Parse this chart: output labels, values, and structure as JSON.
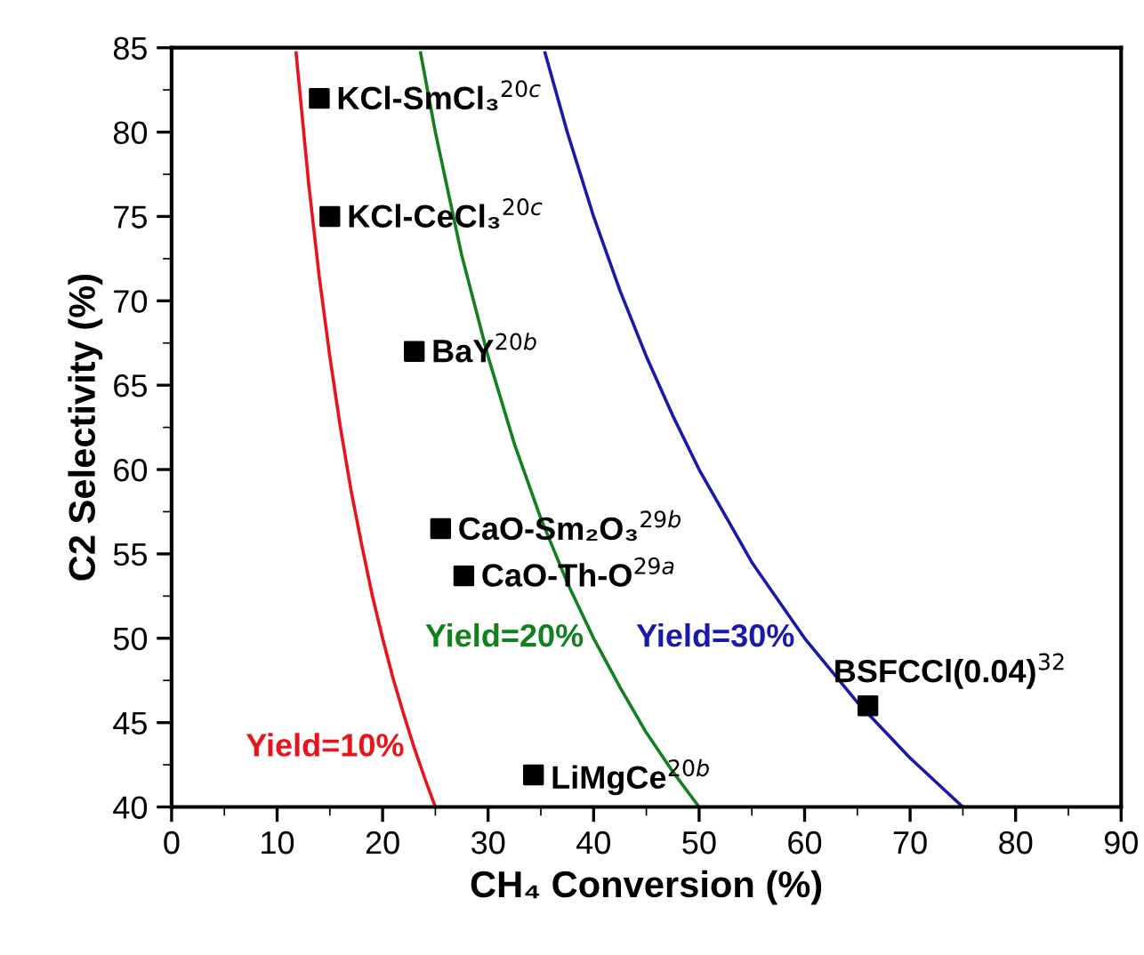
{
  "chart_data": {
    "type": "scatter",
    "xlabel": "CH₄ Conversion (%)",
    "ylabel": "C2 Selectivity (%)",
    "xlim": [
      0,
      90
    ],
    "ylim": [
      40,
      85
    ],
    "xticks": [
      0,
      10,
      20,
      30,
      40,
      50,
      60,
      70,
      80,
      90
    ],
    "yticks": [
      40,
      45,
      50,
      55,
      60,
      65,
      70,
      75,
      80,
      85
    ],
    "grid": false,
    "legend": false,
    "series": [
      {
        "marker": "square",
        "color": "#000000",
        "x": [
          14,
          15,
          23,
          25.5,
          27.7,
          34.3,
          66
        ],
        "values": [
          82,
          75,
          67,
          56.5,
          53.7,
          41.9,
          46
        ]
      },
      {
        "type": "line",
        "name": "Yield=10%",
        "color": "#e8141c",
        "x": [
          11.8,
          13,
          14,
          15,
          16,
          17,
          18,
          19,
          20,
          21,
          22,
          23,
          24,
          25
        ],
        "values": [
          84.7,
          76.9,
          71.4,
          66.7,
          62.5,
          58.8,
          55.6,
          52.6,
          50,
          47.6,
          45.5,
          43.5,
          41.7,
          40
        ]
      },
      {
        "type": "line",
        "name": "Yield=20%",
        "color": "#11801e",
        "x": [
          23.6,
          25,
          27.5,
          30,
          32.5,
          35,
          37.5,
          40,
          42.5,
          45,
          47.5,
          50
        ],
        "values": [
          84.7,
          80,
          72.7,
          66.7,
          61.5,
          57.1,
          53.3,
          50,
          47.1,
          44.4,
          42.1,
          40
        ]
      },
      {
        "type": "line",
        "name": "Yield=30%",
        "color": "#1a1aa8",
        "x": [
          35.4,
          37.5,
          40,
          42.5,
          45,
          47.5,
          50,
          55,
          60,
          65,
          70,
          75
        ],
        "values": [
          84.7,
          80,
          75,
          70.6,
          66.7,
          63.2,
          60,
          54.5,
          50,
          46.2,
          42.9,
          40
        ]
      }
    ],
    "annotations": [
      {
        "text": "KCl-SmCl₃$^{20c}$",
        "x": 14,
        "y": 82
      },
      {
        "text": "KCl-CeCl₃$^{20c}$",
        "x": 15,
        "y": 75
      },
      {
        "text": "BaY$^{20b}$",
        "x": 23,
        "y": 67
      },
      {
        "text": "CaO-Sm₂O₃$^{29b}$",
        "x": 25.5,
        "y": 56.5
      },
      {
        "text": "CaO-Th-O$^{29a}$",
        "x": 27.7,
        "y": 53.7
      },
      {
        "text": "LiMgCe$^{20b}$",
        "x": 34.3,
        "y": 41.9
      },
      {
        "text": "BSFCCl(0.04)$^{32}$",
        "x": 66,
        "y": 46
      }
    ]
  }
}
